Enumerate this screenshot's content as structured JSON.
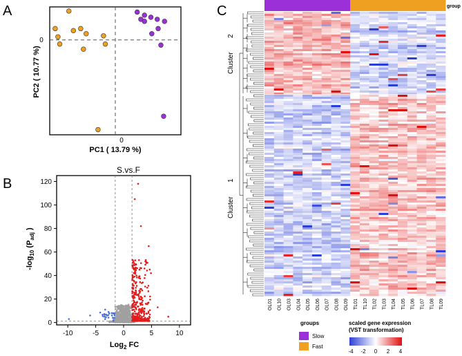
{
  "panels": {
    "a": "A",
    "b": "B",
    "c": "C"
  },
  "colors": {
    "slow": "#9b30d8",
    "fast": "#f0a020",
    "down": "#4a6fd8",
    "up": "#e21b1b",
    "ns": "#a0a0a0",
    "heat_low": "#2b3fd6",
    "heat_mid": "#ffffff",
    "heat_high": "#e01010"
  },
  "chart_data": [
    {
      "id": "pca",
      "type": "scatter",
      "title": "",
      "xlabel": "PC1 ( 13.79 %)",
      "ylabel": "PC2 ( 10.77 %)",
      "x_zero_label": "0",
      "y_zero_label": "0",
      "xlim": [
        -3.6,
        3.6
      ],
      "ylim": [
        -4.6,
        1.6
      ],
      "series": [
        {
          "name": "Slow",
          "points": [
            [
              1.2,
              1.35
            ],
            [
              1.6,
              1.2
            ],
            [
              1.95,
              1.1
            ],
            [
              2.3,
              1.0
            ],
            [
              2.7,
              0.9
            ],
            [
              1.4,
              1.0
            ],
            [
              1.6,
              0.9
            ],
            [
              2.35,
              0.55
            ],
            [
              2.0,
              0.3
            ],
            [
              2.5,
              -0.25
            ],
            [
              2.65,
              -3.7
            ]
          ]
        },
        {
          "name": "Fast",
          "points": [
            [
              -3.3,
              0.55
            ],
            [
              -3.15,
              0.15
            ],
            [
              -3.05,
              -0.2
            ],
            [
              -2.55,
              1.4
            ],
            [
              -2.3,
              0.45
            ],
            [
              -1.9,
              0.55
            ],
            [
              -1.6,
              0.3
            ],
            [
              -1.75,
              -0.45
            ],
            [
              -0.65,
              0.2
            ],
            [
              -0.55,
              -0.2
            ],
            [
              -0.95,
              -4.35
            ]
          ]
        }
      ]
    },
    {
      "id": "volcano",
      "type": "scatter",
      "title": "S.vs.F",
      "xlabel": "Log2 FC",
      "ylabel": "-log10 (Padj )",
      "xlim": [
        -12,
        12
      ],
      "ylim": [
        -2,
        125
      ],
      "xticks": [
        -10,
        -5,
        0,
        5,
        10
      ],
      "yticks": [
        0,
        20,
        40,
        60,
        80,
        100,
        120
      ],
      "fc_threshold": 1.5,
      "p_threshold": 1.3,
      "highlight_points_up": [
        [
          2.6,
          118
        ],
        [
          2.0,
          105
        ],
        [
          4.5,
          65
        ],
        [
          3.1,
          82
        ],
        [
          4.9,
          42
        ],
        [
          6.1,
          13
        ],
        [
          8.0,
          5
        ],
        [
          3.9,
          52
        ]
      ],
      "highlight_points_down": [
        [
          -9.8,
          3
        ],
        [
          -6.0,
          6
        ],
        [
          -4.2,
          8.5
        ],
        [
          -3.3,
          11
        ],
        [
          -2.7,
          9
        ]
      ]
    },
    {
      "id": "heatmap",
      "type": "heatmap",
      "title": "",
      "group_label": "group",
      "columns": [
        "OL01",
        "OL10",
        "OL03",
        "OL04",
        "OL05",
        "OL06",
        "OL07",
        "OL08",
        "OL09",
        "TL01",
        "TL10",
        "TL02",
        "TL03",
        "TL04",
        "TL05",
        "TL06",
        "TL07",
        "TL08",
        "TL09"
      ],
      "column_groups": [
        "Slow",
        "Slow",
        "Slow",
        "Slow",
        "Slow",
        "Slow",
        "Slow",
        "Slow",
        "Slow",
        "Fast",
        "Fast",
        "Fast",
        "Fast",
        "Fast",
        "Fast",
        "Fast",
        "Fast",
        "Fast",
        "Fast"
      ],
      "clusters": [
        {
          "name": "Cluster",
          "number": "2",
          "pattern": "high-in-slow"
        },
        {
          "name": "Cluster",
          "number": "1",
          "pattern": "high-in-fast"
        }
      ],
      "groups_legend": {
        "title": "groups",
        "items": [
          {
            "label": "Slow",
            "color": "#9b30d8"
          },
          {
            "label": "Fast",
            "color": "#f0a020"
          }
        ]
      },
      "scale_legend": {
        "title_line1": "scaled gene expression",
        "title_line2": "(VST transformation)",
        "range": [
          -4,
          4
        ],
        "ticks": [
          "-4",
          "-2",
          "0",
          "2",
          "4"
        ]
      }
    }
  ]
}
